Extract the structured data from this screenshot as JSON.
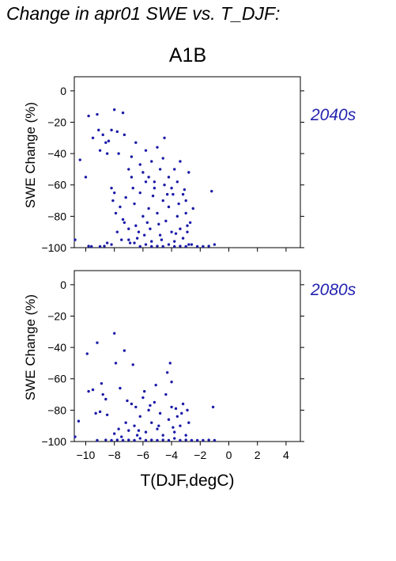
{
  "page": {
    "title": "Change in apr01 SWE vs. T_DJF:",
    "scenario": "A1B",
    "xlabel": "T(DJF,degC)"
  },
  "colors": {
    "points": "#1a1aa8",
    "period_label": "#2323b0"
  },
  "chart_data": [
    {
      "type": "scatter",
      "period": "2040s",
      "ylabel": "SWE Change (%)",
      "xlim": [
        -10.8,
        5.0
      ],
      "ylim": [
        -100,
        9
      ],
      "xticks": [
        -10,
        -8,
        -6,
        -4,
        -2,
        0,
        2,
        4
      ],
      "xtick_labels": [],
      "yticks": [
        0,
        -20,
        -40,
        -60,
        -80,
        -100
      ],
      "ytick_labels": [
        "0",
        "−20",
        "−40",
        "−60",
        "−80",
        "−100"
      ],
      "grid": false,
      "points": [
        [
          -10.8,
          -95
        ],
        [
          -10.4,
          -44
        ],
        [
          -10.0,
          -55
        ],
        [
          -9.8,
          -16
        ],
        [
          -9.5,
          -30
        ],
        [
          -9.2,
          -15
        ],
        [
          -9.1,
          -25
        ],
        [
          -9.0,
          -38
        ],
        [
          -8.8,
          -28
        ],
        [
          -8.6,
          -33
        ],
        [
          -8.5,
          -40
        ],
        [
          -8.4,
          -32
        ],
        [
          -8.2,
          -25
        ],
        [
          -8.0,
          -12
        ],
        [
          -7.8,
          -26
        ],
        [
          -7.4,
          -14
        ],
        [
          -7.3,
          -28
        ],
        [
          -9.8,
          -99
        ],
        [
          -9.6,
          -100
        ],
        [
          -9.0,
          -100
        ],
        [
          -8.7,
          -99
        ],
        [
          -8.5,
          -97
        ],
        [
          -8.2,
          -98
        ],
        [
          -8.2,
          -62
        ],
        [
          -8.1,
          -70
        ],
        [
          -8.0,
          -65
        ],
        [
          -7.9,
          -78
        ],
        [
          -7.8,
          -90
        ],
        [
          -7.6,
          -74
        ],
        [
          -7.5,
          -95
        ],
        [
          -7.4,
          -82
        ],
        [
          -7.2,
          -68
        ],
        [
          -7.0,
          -88
        ],
        [
          -6.9,
          -97
        ],
        [
          -6.8,
          -55
        ],
        [
          -6.6,
          -72
        ],
        [
          -6.5,
          -86
        ],
        [
          -6.4,
          -94
        ],
        [
          -6.2,
          -65
        ],
        [
          -6.0,
          -80
        ],
        [
          -5.9,
          -92
        ],
        [
          -5.8,
          -58
        ],
        [
          -5.6,
          -75
        ],
        [
          -5.5,
          -88
        ],
        [
          -5.4,
          -96
        ],
        [
          -5.2,
          -62
        ],
        [
          -5.0,
          -78
        ],
        [
          -4.9,
          -85
        ],
        [
          -4.8,
          -92
        ],
        [
          -4.6,
          -70
        ],
        [
          -4.5,
          -60
        ],
        [
          -4.4,
          -83
        ],
        [
          -4.2,
          -74
        ],
        [
          -4.0,
          -90
        ],
        [
          -3.9,
          -66
        ],
        [
          -3.8,
          -96
        ],
        [
          -3.6,
          -80
        ],
        [
          -3.5,
          -72
        ],
        [
          -3.4,
          -88
        ],
        [
          -3.2,
          -94
        ],
        [
          -3.0,
          -78
        ],
        [
          -2.9,
          -86
        ],
        [
          -2.8,
          -98
        ],
        [
          -7.7,
          -40
        ],
        [
          -7.0,
          -50
        ],
        [
          -6.8,
          -42
        ],
        [
          -6.5,
          -33
        ],
        [
          -6.2,
          -47
        ],
        [
          -6.0,
          -52
        ],
        [
          -5.8,
          -38
        ],
        [
          -5.6,
          -55
        ],
        [
          -5.4,
          -45
        ],
        [
          -5.2,
          -58
        ],
        [
          -5.0,
          -36
        ],
        [
          -4.8,
          -50
        ],
        [
          -4.6,
          -43
        ],
        [
          -4.5,
          -30
        ],
        [
          -4.2,
          -55
        ],
        [
          -4.0,
          -62
        ],
        [
          -3.8,
          -50
        ],
        [
          -3.6,
          -58
        ],
        [
          -3.4,
          -45
        ],
        [
          -3.2,
          -66
        ],
        [
          -3.0,
          -70
        ],
        [
          -2.8,
          -52
        ],
        [
          -7.0,
          -95
        ],
        [
          -6.6,
          -97
        ],
        [
          -6.2,
          -100
        ],
        [
          -5.8,
          -98
        ],
        [
          -5.4,
          -100
        ],
        [
          -5.0,
          -99
        ],
        [
          -4.6,
          -100
        ],
        [
          -4.2,
          -98
        ],
        [
          -3.8,
          -100
        ],
        [
          -3.4,
          -99
        ],
        [
          -3.0,
          -100
        ],
        [
          -2.6,
          -98
        ],
        [
          -2.2,
          -100
        ],
        [
          -1.8,
          -100
        ],
        [
          -1.4,
          -99
        ],
        [
          -1.0,
          -98
        ],
        [
          -7.3,
          -84
        ],
        [
          -6.3,
          -90
        ],
        [
          -5.3,
          -67
        ],
        [
          -4.7,
          -95
        ],
        [
          -3.7,
          -91
        ],
        [
          -2.7,
          -84
        ],
        [
          -2.9,
          -90
        ],
        [
          -3.1,
          -63
        ],
        [
          -4.3,
          -66
        ],
        [
          -5.7,
          -84
        ],
        [
          -6.7,
          -62
        ],
        [
          -2.5,
          -75
        ],
        [
          -1.2,
          -64
        ]
      ]
    },
    {
      "type": "scatter",
      "period": "2080s",
      "ylabel": "SWE Change (%)",
      "xlim": [
        -10.8,
        5.0
      ],
      "ylim": [
        -100,
        9
      ],
      "xticks": [
        -10,
        -8,
        -6,
        -4,
        -2,
        0,
        2,
        4
      ],
      "xtick_labels": [
        "−10",
        "−8",
        "−6",
        "−4",
        "−2",
        "0",
        "2",
        "4"
      ],
      "yticks": [
        0,
        -20,
        -40,
        -60,
        -80,
        -100
      ],
      "ytick_labels": [
        "0",
        "−20",
        "−40",
        "−60",
        "−80",
        "−100"
      ],
      "grid": false,
      "points": [
        [
          -10.8,
          -97
        ],
        [
          -10.5,
          -87
        ],
        [
          -9.9,
          -44
        ],
        [
          -9.8,
          -68
        ],
        [
          -9.5,
          -67
        ],
        [
          -9.3,
          -82
        ],
        [
          -9.2,
          -37
        ],
        [
          -9.0,
          -81
        ],
        [
          -8.9,
          -63
        ],
        [
          -8.8,
          -70
        ],
        [
          -8.6,
          -73
        ],
        [
          -8.5,
          -83
        ],
        [
          -8.0,
          -31
        ],
        [
          -7.9,
          -50
        ],
        [
          -7.6,
          -66
        ],
        [
          -7.3,
          -42
        ],
        [
          -6.7,
          -51
        ],
        [
          -9.2,
          -100
        ],
        [
          -8.6,
          -99
        ],
        [
          -8.2,
          -100
        ],
        [
          -7.8,
          -99
        ],
        [
          -7.4,
          -100
        ],
        [
          -7.0,
          -99
        ],
        [
          -6.6,
          -100
        ],
        [
          -6.2,
          -98
        ],
        [
          -5.8,
          -100
        ],
        [
          -5.4,
          -99
        ],
        [
          -5.0,
          -100
        ],
        [
          -4.6,
          -99
        ],
        [
          -4.2,
          -100
        ],
        [
          -3.8,
          -98
        ],
        [
          -3.4,
          -100
        ],
        [
          -3.0,
          -99
        ],
        [
          -2.6,
          -100
        ],
        [
          -2.2,
          -100
        ],
        [
          -1.8,
          -100
        ],
        [
          -1.4,
          -99
        ],
        [
          -1.0,
          -100
        ],
        [
          -8.0,
          -95
        ],
        [
          -7.7,
          -92
        ],
        [
          -7.5,
          -97
        ],
        [
          -7.2,
          -88
        ],
        [
          -7.0,
          -93
        ],
        [
          -6.8,
          -76
        ],
        [
          -6.6,
          -90
        ],
        [
          -6.4,
          -96
        ],
        [
          -6.2,
          -84
        ],
        [
          -6.0,
          -72
        ],
        [
          -5.8,
          -94
        ],
        [
          -5.6,
          -80
        ],
        [
          -5.4,
          -88
        ],
        [
          -5.2,
          -75
        ],
        [
          -5.0,
          -92
        ],
        [
          -4.8,
          -82
        ],
        [
          -4.6,
          -96
        ],
        [
          -4.4,
          -70
        ],
        [
          -4.2,
          -86
        ],
        [
          -4.0,
          -78
        ],
        [
          -3.8,
          -94
        ],
        [
          -3.6,
          -84
        ],
        [
          -3.4,
          -90
        ],
        [
          -3.2,
          -76
        ],
        [
          -3.0,
          -96
        ],
        [
          -2.8,
          -88
        ],
        [
          -7.1,
          -74
        ],
        [
          -6.5,
          -78
        ],
        [
          -5.9,
          -68
        ],
        [
          -5.1,
          -64
        ],
        [
          -4.3,
          -56
        ],
        [
          -4.0,
          -62
        ],
        [
          -3.7,
          -79
        ],
        [
          -3.3,
          -82
        ],
        [
          -2.9,
          -80
        ],
        [
          -1.1,
          -78
        ],
        [
          -4.1,
          -50
        ],
        [
          -5.5,
          -77
        ],
        [
          -6.3,
          -93
        ],
        [
          -4.9,
          -90
        ],
        [
          -3.9,
          -91
        ]
      ]
    }
  ]
}
